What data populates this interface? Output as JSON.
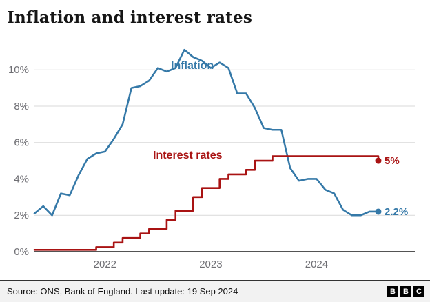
{
  "chart_data": {
    "type": "line",
    "title": "Inflation and interest rates",
    "x_unit": "month",
    "x_start": "2021-05",
    "x_tick_labels": [
      "2022",
      "2023",
      "2024"
    ],
    "x_tick_positions": [
      8,
      20,
      32
    ],
    "y_tick_labels": [
      "0%",
      "2%",
      "4%",
      "6%",
      "8%",
      "10%"
    ],
    "y_tick_values": [
      0,
      2,
      4,
      6,
      8,
      10
    ],
    "ylim": [
      0,
      11.6
    ],
    "grid": "horizontal",
    "series": [
      {
        "name": "Inflation",
        "color": "#3579A8",
        "style": "line",
        "end_label": "2.2%",
        "values": [
          2.1,
          2.5,
          2.0,
          3.2,
          3.1,
          4.2,
          5.1,
          5.4,
          5.5,
          6.2,
          7.0,
          9.0,
          9.1,
          9.4,
          10.1,
          9.9,
          10.1,
          11.1,
          10.7,
          10.5,
          10.1,
          10.4,
          10.1,
          8.7,
          8.7,
          7.9,
          6.8,
          6.7,
          6.7,
          4.6,
          3.9,
          4.0,
          4.0,
          3.4,
          3.2,
          2.3,
          2.0,
          2.0,
          2.2,
          2.2
        ]
      },
      {
        "name": "Interest rates",
        "color": "#A91313",
        "style": "step",
        "end_label": "5%",
        "values": [
          0.1,
          0.1,
          0.1,
          0.1,
          0.1,
          0.1,
          0.1,
          0.25,
          0.25,
          0.5,
          0.75,
          0.75,
          1.0,
          1.25,
          1.25,
          1.75,
          2.25,
          2.25,
          3.0,
          3.5,
          3.5,
          4.0,
          4.25,
          4.25,
          4.5,
          5.0,
          5.0,
          5.25,
          5.25,
          5.25,
          5.25,
          5.25,
          5.25,
          5.25,
          5.25,
          5.25,
          5.25,
          5.25,
          5.25,
          5.0
        ]
      }
    ]
  },
  "footer": {
    "source": "Source: ONS, Bank of England. Last update: 19 Sep 2024",
    "logo_letters": [
      "B",
      "B",
      "C"
    ]
  }
}
